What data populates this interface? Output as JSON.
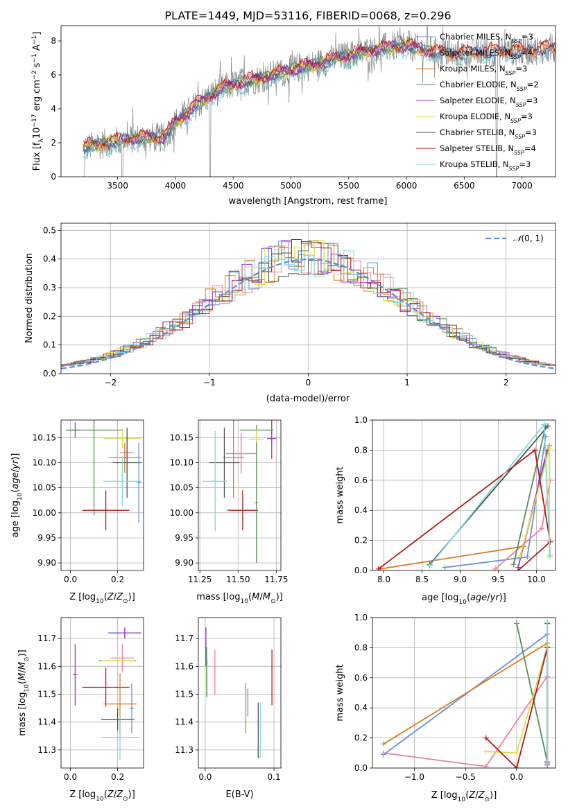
{
  "figure": {
    "title": "PLATE=1449, MJD=53116, FIBERID=0068, z=0.296",
    "series_names": [
      "Chabrier MILES, N_SSP=3",
      "Salpeter MILES, N_SSP=4",
      "Kroupa MILES, N_SSP=3",
      "Chabrier ELODIE, N_SSP=2",
      "Salpeter ELODIE, N_SSP=3",
      "Kroupa ELODIE, N_SSP=3",
      "Chabrier STELIB, N_SSP=3",
      "Salpeter STELIB, N_SSP=4",
      "Kroupa STELIB, N_SSP=3"
    ],
    "colors": {
      "data": "#808080",
      "series": [
        "#6a8fd8",
        "#e8839a",
        "#e07a1f",
        "#5a8a5a",
        "#9b30c8",
        "#d8e04a",
        "#505050",
        "#b01818",
        "#7fd8d8"
      ],
      "normal": "#5b8ed6"
    }
  },
  "chart_data": [
    {
      "id": "spectrum",
      "type": "line",
      "title": "PLATE=1449, MJD=53116, FIBERID=0068, z=0.296",
      "xlabel": "wavelength [Angstrom, rest frame]",
      "ylabel": "Flux [f_λ 10^-17 erg cm^-2 s^-1 A^-1]",
      "xlim": [
        3010,
        7290
      ],
      "ylim": [
        0,
        8.9
      ],
      "xticks": [
        3500,
        4000,
        4500,
        5000,
        5500,
        6000,
        6500,
        7000
      ],
      "yticks": [
        0,
        2,
        4,
        6,
        8
      ],
      "legend": [
        {
          "prefix": "Chabrier MILES, N",
          "sub": "SSP",
          "suffix": "=3"
        },
        {
          "prefix": "Salpeter MILES, N",
          "sub": "SSP",
          "suffix": "=4"
        },
        {
          "prefix": "Kroupa MILES, N",
          "sub": "SSP",
          "suffix": "=3"
        },
        {
          "prefix": "Chabrier ELODIE, N",
          "sub": "SSP",
          "suffix": "=2"
        },
        {
          "prefix": "Salpeter ELODIE, N",
          "sub": "SSP",
          "suffix": "=3"
        },
        {
          "prefix": "Kroupa ELODIE, N",
          "sub": "SSP",
          "suffix": "=3"
        },
        {
          "prefix": "Chabrier STELIB, N",
          "sub": "SSP",
          "suffix": "=3"
        },
        {
          "prefix": "Salpeter STELIB, N",
          "sub": "SSP",
          "suffix": "=4"
        },
        {
          "prefix": "Kroupa STELIB, N",
          "sub": "SSP",
          "suffix": "=3"
        }
      ],
      "legend_position": "top-right",
      "model_continuum": {
        "x": [
          3200,
          3500,
          3700,
          3900,
          4000,
          4200,
          4400,
          4600,
          4800,
          5000,
          5200,
          5400,
          5600,
          5800,
          6000,
          6200,
          6400,
          6600,
          6800,
          7000,
          7200
        ],
        "y": [
          1.7,
          2.1,
          2.3,
          2.3,
          3.2,
          4.3,
          5.2,
          5.6,
          5.9,
          6.3,
          6.6,
          7.0,
          7.3,
          7.6,
          7.7,
          7.4,
          7.2,
          7.3,
          7.4,
          7.4,
          7.5
        ]
      },
      "noise_amplitude": 0.9
    },
    {
      "id": "residuals",
      "type": "histogram",
      "xlabel": "(data-model)/error",
      "ylabel": "Normed distribution",
      "xlim": [
        -2.5,
        2.5
      ],
      "ylim": [
        0,
        0.525
      ],
      "xticks": [
        -2,
        -1,
        0,
        1,
        2
      ],
      "yticks": [
        0.0,
        0.1,
        0.2,
        0.3,
        0.4,
        0.5
      ],
      "grid": true,
      "legend": "N(0,1)",
      "legend_position": "top-right",
      "bin_width": 0.1
    },
    {
      "id": "age_vs_Z",
      "type": "errorbar",
      "xlabel": "Z [log10(Z/Z_sun)]",
      "ylabel": "age [log10(age/yr)]",
      "xlim": [
        -0.04,
        0.31
      ],
      "ylim": [
        9.885,
        10.185
      ],
      "xticks": [
        0.0,
        0.2
      ],
      "yticks": [
        9.9,
        9.95,
        10.0,
        10.05,
        10.1,
        10.15
      ],
      "grid": true,
      "points": [
        {
          "x": 0.02,
          "xe": 0.02,
          "y": 10.165,
          "ye": 0.015,
          "c": 4
        },
        {
          "x": 0.1,
          "xe": 0.12,
          "y": 10.165,
          "ye": 0.17,
          "c": 3
        },
        {
          "x": 0.22,
          "xe": 0.08,
          "y": 10.148,
          "ye": 0.02,
          "c": 5
        },
        {
          "x": 0.24,
          "xe": 0.03,
          "y": 10.12,
          "ye": 0.04,
          "c": 1
        },
        {
          "x": 0.23,
          "xe": 0.07,
          "y": 10.11,
          "ye": 0.03,
          "c": 2
        },
        {
          "x": 0.24,
          "xe": 0.06,
          "y": 10.1,
          "ye": 0.07,
          "c": 6
        },
        {
          "x": 0.22,
          "xe": 0.08,
          "y": 10.063,
          "ye": 0.05,
          "c": 8
        },
        {
          "x": 0.15,
          "xe": 0.1,
          "y": 10.005,
          "ye": 0.04,
          "c": 7
        },
        {
          "x": 0.29,
          "xe": 0.01,
          "y": 10.06,
          "ye": 0.08,
          "c": 0
        }
      ]
    },
    {
      "id": "age_vs_mass",
      "type": "errorbar",
      "xlabel": "mass [log10(M/M_sun)]",
      "ylabel": "",
      "xlim": [
        11.24,
        11.78
      ],
      "ylim": [
        9.885,
        10.185
      ],
      "xticks": [
        11.25,
        11.5,
        11.75
      ],
      "yticks": [
        9.9,
        9.95,
        10.0,
        10.05,
        10.1,
        10.15
      ],
      "grid": true,
      "points": [
        {
          "x": 11.62,
          "xe": 0.11,
          "y": 10.165,
          "ye": 0.01,
          "c": 3
        },
        {
          "x": 11.72,
          "xe": 0.03,
          "y": 10.148,
          "ye": 0.04,
          "c": 4
        },
        {
          "x": 11.62,
          "xe": 0.05,
          "y": 10.146,
          "ye": 0.02,
          "c": 5
        },
        {
          "x": 11.52,
          "xe": 0.1,
          "y": 10.118,
          "ye": 0.03,
          "c": 0
        },
        {
          "x": 11.52,
          "xe": 0.03,
          "y": 10.118,
          "ye": 0.04,
          "c": 1
        },
        {
          "x": 11.47,
          "xe": 0.07,
          "y": 10.11,
          "ye": 0.08,
          "c": 2
        },
        {
          "x": 11.41,
          "xe": 0.1,
          "y": 10.1,
          "ye": 0.07,
          "c": 6
        },
        {
          "x": 11.35,
          "xe": 0.08,
          "y": 10.063,
          "ye": 0.1,
          "c": 8
        },
        {
          "x": 11.53,
          "xe": 0.1,
          "y": 10.005,
          "ye": 0.04,
          "c": 7
        },
        {
          "x": 11.62,
          "xe": 0.01,
          "y": 10.02,
          "ye": 0.12,
          "c": 3
        }
      ]
    },
    {
      "id": "weight_vs_age",
      "type": "line",
      "xlabel": "age [log10(age/yr)]",
      "ylabel": "mass weight",
      "xlim": [
        7.85,
        10.25
      ],
      "ylim": [
        0,
        1.0
      ],
      "xticks": [
        8.0,
        8.5,
        9.0,
        9.5,
        10.0
      ],
      "yticks": [
        0.0,
        0.2,
        0.4,
        0.6,
        0.8,
        1.0
      ],
      "grid": true,
      "series": [
        {
          "c": 0,
          "x": [
            8.8,
            9.88,
            10.12
          ],
          "y": [
            0.02,
            0.09,
            0.89
          ]
        },
        {
          "c": 1,
          "x": [
            9.46,
            10.07,
            10.18
          ],
          "y": [
            0.01,
            0.28,
            0.6
          ]
        },
        {
          "c": 2,
          "x": [
            7.95,
            9.83,
            10.17
          ],
          "y": [
            0.01,
            0.16,
            0.83
          ]
        },
        {
          "c": 3,
          "x": [
            9.7,
            10.12
          ],
          "y": [
            0.04,
            0.96
          ]
        },
        {
          "c": 4,
          "x": [
            9.76,
            10.14
          ],
          "y": [
            0.02,
            0.8
          ]
        },
        {
          "c": 5,
          "x": [
            9.79,
            10.17,
            10.17
          ],
          "y": [
            0.1,
            0.81,
            0.09
          ]
        },
        {
          "c": 6,
          "x": [
            8.6,
            10.15
          ],
          "y": [
            0.04,
            0.96
          ]
        },
        {
          "c": 7,
          "x": [
            7.93,
            9.98,
            10.18,
            9.76
          ],
          "y": [
            0.01,
            0.8,
            0.19,
            0.0
          ]
        },
        {
          "c": 8,
          "x": [
            8.6,
            10.1,
            10.18
          ],
          "y": [
            0.03,
            0.97,
            0.1
          ]
        }
      ]
    },
    {
      "id": "mass_vs_Z",
      "type": "errorbar",
      "xlabel": "Z [log10(Z/Z_sun)]",
      "ylabel": "mass [log10(M/M_sun)]",
      "xlim": [
        -0.04,
        0.31
      ],
      "ylim": [
        11.235,
        11.775
      ],
      "xticks": [
        0.0,
        0.2
      ],
      "yticks": [
        11.3,
        11.4,
        11.5,
        11.6,
        11.7
      ],
      "grid": true,
      "points": [
        {
          "x": 0.02,
          "xe": 0.01,
          "y": 11.57,
          "ye": 0.11,
          "c": 4
        },
        {
          "x": 0.2,
          "xe": 0.08,
          "y": 11.62,
          "ye": 0.01,
          "c": 3
        },
        {
          "x": 0.23,
          "xe": 0.07,
          "y": 11.72,
          "ye": 0.02,
          "c": 4
        },
        {
          "x": 0.22,
          "xe": 0.05,
          "y": 11.63,
          "ye": 0.05,
          "c": 1
        },
        {
          "x": 0.2,
          "xe": 0.07,
          "y": 11.62,
          "ye": 0.02,
          "c": 5
        },
        {
          "x": 0.15,
          "xe": 0.1,
          "y": 11.525,
          "ye": 0.07,
          "c": 7
        },
        {
          "x": 0.21,
          "xe": 0.07,
          "y": 11.465,
          "ye": 0.11,
          "c": 2
        },
        {
          "x": 0.2,
          "xe": 0.07,
          "y": 11.41,
          "ye": 0.04,
          "c": 6
        },
        {
          "x": 0.21,
          "xe": 0.08,
          "y": 11.345,
          "ye": 0.08,
          "c": 8
        },
        {
          "x": 0.26,
          "xe": 0.01,
          "y": 11.45,
          "ye": 0.09,
          "c": 0
        }
      ]
    },
    {
      "id": "mass_vs_EBV",
      "type": "errorbar",
      "xlabel": "E(B-V)",
      "ylabel": "",
      "xlim": [
        -0.01,
        0.11
      ],
      "ylim": [
        11.235,
        11.775
      ],
      "xticks": [
        0.0,
        0.1
      ],
      "yticks": [
        11.3,
        11.4,
        11.5,
        11.6,
        11.7
      ],
      "grid": true,
      "points": [
        {
          "x": 0.001,
          "xe": 0,
          "y": 11.67,
          "ye": 0.07,
          "c": 4
        },
        {
          "x": 0.002,
          "xe": 0,
          "y": 11.58,
          "ye": 0.09,
          "c": 3
        },
        {
          "x": 0.003,
          "xe": 0,
          "y": 11.56,
          "ye": 0.07,
          "c": 5
        },
        {
          "x": 0.014,
          "xe": 0,
          "y": 11.58,
          "ye": 0.08,
          "c": 1
        },
        {
          "x": 0.059,
          "xe": 0,
          "y": 11.45,
          "ye": 0.09,
          "c": 2
        },
        {
          "x": 0.062,
          "xe": 0,
          "y": 11.47,
          "ye": 0.05,
          "c": 0
        },
        {
          "x": 0.077,
          "xe": 0,
          "y": 11.37,
          "ye": 0.1,
          "c": 6
        },
        {
          "x": 0.08,
          "xe": 0,
          "y": 11.37,
          "ye": 0.1,
          "c": 8
        },
        {
          "x": 0.097,
          "xe": 0,
          "y": 11.56,
          "ye": 0.1,
          "c": 7
        }
      ]
    },
    {
      "id": "weight_vs_Z",
      "type": "line",
      "xlabel": "Z [log10(Z/Z_sun)]",
      "ylabel": "mass weight",
      "xlim": [
        -1.41,
        0.38
      ],
      "ylim": [
        0,
        1.0
      ],
      "xticks": [
        -1.0,
        -0.5,
        0.0
      ],
      "yticks": [
        0.0,
        0.2,
        0.4,
        0.6,
        0.8,
        1.0
      ],
      "grid": true,
      "series": [
        {
          "c": 0,
          "x": [
            -1.3,
            0.3
          ],
          "y": [
            0.09,
            0.89
          ]
        },
        {
          "c": 1,
          "x": [
            -1.3,
            -0.3,
            0.3
          ],
          "y": [
            0.1,
            0.01,
            0.61
          ]
        },
        {
          "c": 2,
          "x": [
            -1.3,
            0.3
          ],
          "y": [
            0.16,
            0.83
          ]
        },
        {
          "c": 3,
          "x": [
            0.0,
            0.3
          ],
          "y": [
            0.96,
            0.04
          ]
        },
        {
          "c": 4,
          "x": [
            0.3,
            0.3
          ],
          "y": [
            0.02,
            0.8
          ]
        },
        {
          "c": 5,
          "x": [
            -0.3,
            0.0,
            0.3
          ],
          "y": [
            0.11,
            0.1,
            0.81
          ]
        },
        {
          "c": 6,
          "x": [
            0.3,
            0.3
          ],
          "y": [
            0.04,
            0.96
          ]
        },
        {
          "c": 7,
          "x": [
            -0.3,
            0.0,
            0.3
          ],
          "y": [
            0.2,
            0.0,
            0.8
          ]
        },
        {
          "c": 8,
          "x": [
            0.3,
            0.3
          ],
          "y": [
            0.03,
            0.97
          ]
        }
      ]
    }
  ]
}
